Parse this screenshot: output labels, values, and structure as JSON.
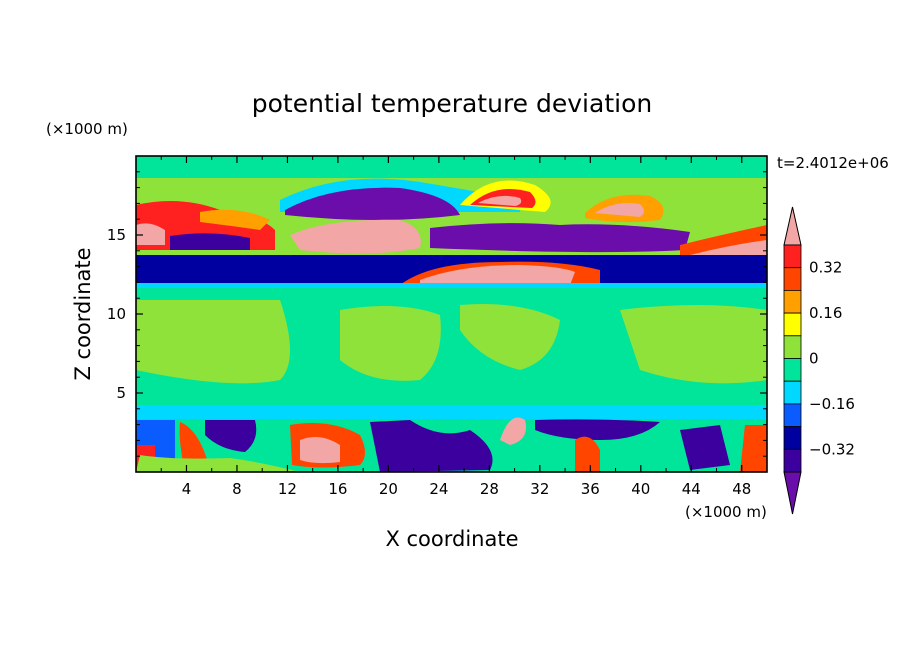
{
  "chart_data": {
    "type": "contour",
    "title": "potential temperature deviation",
    "xlabel": "X coordinate",
    "ylabel": "Z coordinate",
    "x_unit": "(×1000 m)",
    "y_unit": "(×1000 m)",
    "time_label": "t=2.4012e+06",
    "xlim": [
      0,
      50
    ],
    "ylim": [
      0,
      20
    ],
    "x_ticks": [
      "4",
      "8",
      "12",
      "16",
      "20",
      "24",
      "28",
      "32",
      "36",
      "40",
      "44",
      "48"
    ],
    "x_tick_values": [
      4,
      8,
      12,
      16,
      20,
      24,
      28,
      32,
      36,
      40,
      44,
      48
    ],
    "y_ticks": [
      "5",
      "10",
      "15"
    ],
    "y_tick_values": [
      5,
      10,
      15
    ],
    "colorbar": {
      "levels": [
        -0.4,
        -0.32,
        -0.24,
        -0.16,
        -0.08,
        0,
        0.08,
        0.16,
        0.24,
        0.32,
        0.4
      ],
      "tick_labels": [
        "0.32",
        "0.16",
        "0",
        "−0.16",
        "−0.32"
      ],
      "tick_values": [
        0.32,
        0.16,
        0,
        -0.16,
        -0.32
      ],
      "colors": [
        "#6a0daa",
        "#3b009d",
        "#0000a0",
        "#0b5cff",
        "#00d8ff",
        "#00e59a",
        "#8ee23a",
        "#ffff00",
        "#ffa000",
        "#ff4500",
        "#ff2020",
        "#f2a6a6"
      ]
    }
  }
}
